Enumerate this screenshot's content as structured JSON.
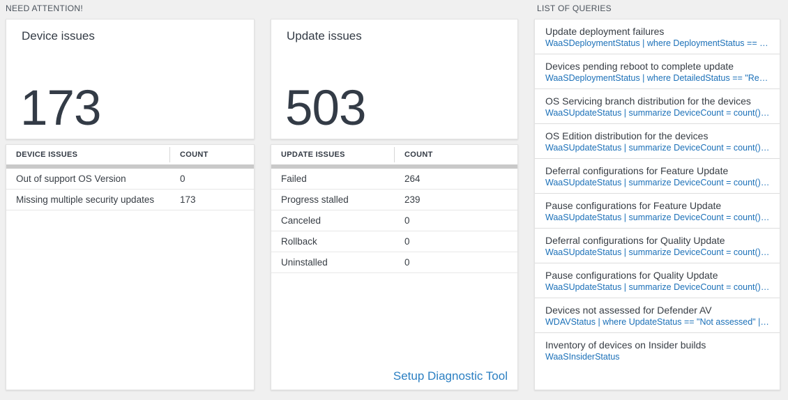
{
  "sections": {
    "need_attention_label": "NEED ATTENTION!",
    "queries_label": "LIST OF QUERIES"
  },
  "device_issues": {
    "title": "Device issues",
    "total": "173",
    "columns": [
      "DEVICE ISSUES",
      "COUNT"
    ],
    "rows": [
      {
        "label": "Out of support OS Version",
        "count": "0"
      },
      {
        "label": "Missing multiple security updates",
        "count": "173"
      }
    ]
  },
  "update_issues": {
    "title": "Update issues",
    "total": "503",
    "columns": [
      "UPDATE ISSUES",
      "COUNT"
    ],
    "rows": [
      {
        "label": "Failed",
        "count": "264"
      },
      {
        "label": "Progress stalled",
        "count": "239"
      },
      {
        "label": "Canceled",
        "count": "0"
      },
      {
        "label": "Rollback",
        "count": "0"
      },
      {
        "label": "Uninstalled",
        "count": "0"
      }
    ],
    "footer_link": "Setup Diagnostic Tool"
  },
  "queries": {
    "items": [
      {
        "title": "Update deployment failures",
        "query": "WaaSDeploymentStatus | where DeploymentStatus == \"Failed\" |"
      },
      {
        "title": "Devices pending reboot to complete update",
        "query": "WaaSDeploymentStatus | where DetailedStatus == \"Reboot pend"
      },
      {
        "title": "OS Servicing branch distribution for the devices",
        "query": "WaaSUpdateStatus | summarize DeviceCount = count() by OSSer"
      },
      {
        "title": "OS Edition distribution for the devices",
        "query": "WaaSUpdateStatus | summarize DeviceCount = count() by OSEdit"
      },
      {
        "title": "Deferral configurations for Feature Update",
        "query": "WaaSUpdateStatus | summarize DeviceCount = count() by Featur"
      },
      {
        "title": "Pause configurations for Feature Update",
        "query": "WaaSUpdateStatus | summarize DeviceCount = count() by Featur"
      },
      {
        "title": "Deferral configurations for Quality Update",
        "query": "WaaSUpdateStatus | summarize DeviceCount = count() by Qualit"
      },
      {
        "title": "Pause configurations for Quality Update",
        "query": "WaaSUpdateStatus | summarize DeviceCount = count() by Qualit"
      },
      {
        "title": "Devices not assessed for Defender AV",
        "query": "WDAVStatus | where UpdateStatus == \"Not assessed\" | render ta"
      },
      {
        "title": "Inventory of devices on Insider builds",
        "query": "WaaSInsiderStatus"
      }
    ]
  },
  "colors": {
    "background": "#f0f0f0",
    "panel": "#ffffff",
    "accent_link": "#1b70b8",
    "diag_link": "#2b7fc2",
    "dark_text": "#333b46",
    "header_bar": "#c9c9c9"
  }
}
